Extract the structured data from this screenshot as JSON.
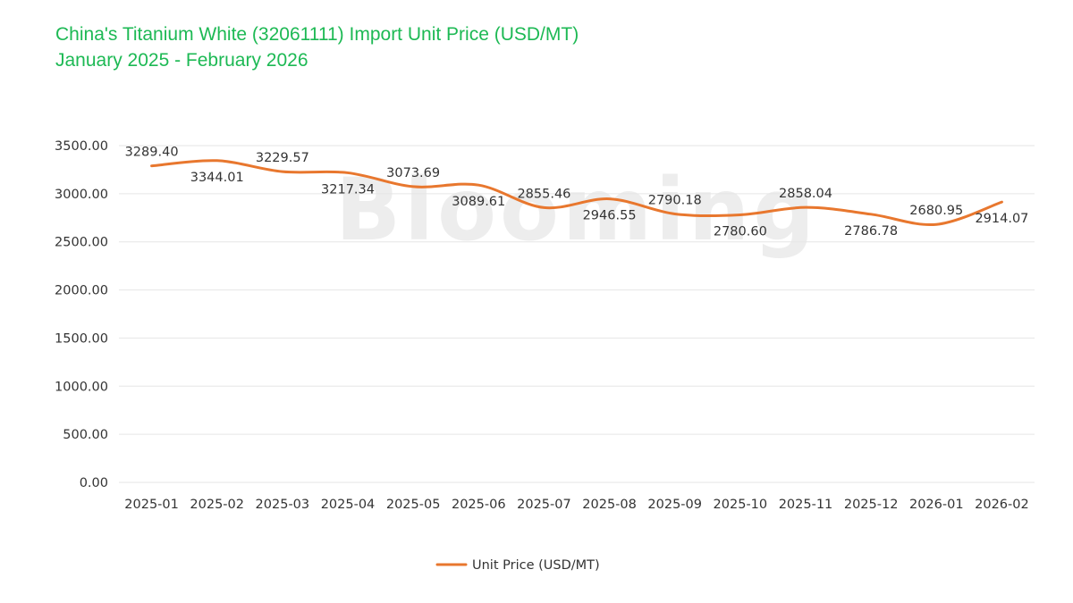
{
  "title": "China's Titanium White (32061111) Import Unit Price (USD/MT)",
  "subtitle": "January 2025 - February 2026",
  "watermark": "Blooming",
  "colors": {
    "title": "#1db954",
    "series": "#e8772e",
    "grid": "#e6e6e6",
    "text": "#333333"
  },
  "chart_data": {
    "type": "line",
    "title": "China's Titanium White (32061111) Import Unit Price (USD/MT)",
    "subtitle": "January 2025 - February 2026",
    "categories": [
      "2025-01",
      "2025-02",
      "2025-03",
      "2025-04",
      "2025-05",
      "2025-06",
      "2025-07",
      "2025-08",
      "2025-09",
      "2025-10",
      "2025-11",
      "2025-12",
      "2026-01",
      "2026-02"
    ],
    "series": [
      {
        "name": "Unit Price (USD/MT)",
        "values": [
          3289.4,
          3344.01,
          3229.57,
          3217.34,
          3073.69,
          3089.61,
          2855.46,
          2946.55,
          2790.18,
          2780.6,
          2858.04,
          2786.78,
          2680.95,
          2914.07
        ],
        "labels": [
          "3289.40",
          "3344.01",
          "3229.57",
          "3217.34",
          "3073.69",
          "3089.61",
          "2855.46",
          "2946.55",
          "2790.18",
          "2780.60",
          "2858.04",
          "2786.78",
          "2680.95",
          "2914.07"
        ]
      }
    ],
    "yticks": [
      "0.00",
      "500.00",
      "1000.00",
      "1500.00",
      "2000.00",
      "2500.00",
      "3000.00",
      "3500.00"
    ],
    "ylim": [
      0,
      3500
    ],
    "smooth": true,
    "grid": true,
    "legend_position": "bottom-center"
  }
}
